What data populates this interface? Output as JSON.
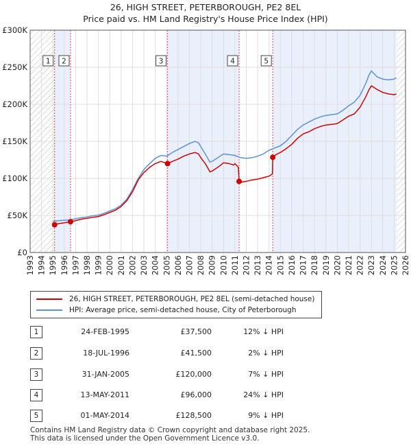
{
  "header": {
    "title": "26, HIGH STREET, PETERBOROUGH, PE2 8EL",
    "subtitle": "Price paid vs. HM Land Registry's House Price Index (HPI)"
  },
  "chart_data": {
    "type": "line",
    "title": "26, HIGH STREET, PETERBOROUGH, PE2 8EL",
    "subtitle": "Price paid vs. HM Land Registry's House Price Index (HPI)",
    "xlabel": "",
    "ylabel": "",
    "xlim": [
      1993,
      2026
    ],
    "ylim": [
      0,
      300000
    ],
    "x_ticks": [
      1993,
      1994,
      1995,
      1996,
      1997,
      1998,
      1999,
      2000,
      2001,
      2002,
      2003,
      2004,
      2005,
      2006,
      2007,
      2008,
      2009,
      2010,
      2011,
      2012,
      2013,
      2014,
      2015,
      2016,
      2017,
      2018,
      2019,
      2020,
      2021,
      2022,
      2023,
      2024,
      2025,
      2026
    ],
    "y_ticks": [
      0,
      50000,
      100000,
      150000,
      200000,
      250000,
      300000
    ],
    "y_tick_labels": [
      "£0",
      "£50K",
      "£100K",
      "£150K",
      "£200K",
      "£250K",
      "£300K"
    ],
    "grid": true,
    "hatched_ranges": [
      [
        1993,
        1995.15
      ],
      [
        2025.2,
        2026
      ]
    ],
    "sale_regions": [
      [
        1995.15,
        1996.55
      ],
      [
        2005.08,
        2011.37
      ],
      [
        2014.33,
        2025.2
      ]
    ],
    "series": [
      {
        "name": "26, HIGH STREET, PETERBOROUGH, PE2 8EL (semi-detached house)",
        "color": "#cc0000",
        "x": [
          1995.15,
          1995.5,
          1996.0,
          1996.55,
          1997.0,
          1997.5,
          1998.0,
          1998.5,
          1999.0,
          1999.5,
          2000.0,
          2000.5,
          2001.0,
          2001.5,
          2002.0,
          2002.5,
          2003.0,
          2003.5,
          2004.0,
          2004.5,
          2005.08,
          2005.5,
          2006.0,
          2006.5,
          2007.0,
          2007.5,
          2007.8,
          2008.0,
          2008.4,
          2008.8,
          2009.0,
          2009.5,
          2010.0,
          2010.5,
          2010.9,
          2011.0,
          2011.3,
          2011.37,
          2011.6,
          2012.0,
          2012.5,
          2013.0,
          2013.5,
          2014.0,
          2014.3,
          2014.33,
          2014.6,
          2015.0,
          2015.5,
          2016.0,
          2016.5,
          2017.0,
          2017.5,
          2018.0,
          2018.5,
          2019.0,
          2019.5,
          2020.0,
          2020.5,
          2021.0,
          2021.5,
          2022.0,
          2022.5,
          2022.8,
          2023.0,
          2023.5,
          2024.0,
          2024.5,
          2025.0,
          2025.2
        ],
        "y": [
          37500,
          39000,
          40000,
          41500,
          43000,
          45000,
          46000,
          47500,
          48500,
          51000,
          54000,
          57000,
          62000,
          70000,
          82000,
          98000,
          108000,
          115000,
          120000,
          123000,
          120000,
          123000,
          126000,
          130000,
          133000,
          135000,
          133000,
          128000,
          120000,
          109000,
          110000,
          115000,
          121000,
          120000,
          118000,
          120000,
          115000,
          96000,
          95000,
          96000,
          98000,
          99000,
          101000,
          103000,
          106000,
          128500,
          132000,
          135000,
          140000,
          146000,
          154000,
          160000,
          163000,
          167000,
          170000,
          172000,
          173000,
          174000,
          179000,
          184000,
          187000,
          196000,
          210000,
          220000,
          225000,
          220000,
          216000,
          214000,
          213000,
          214000
        ]
      },
      {
        "name": "HPI: Average price, semi-detached house, City of Peterborough",
        "color": "#5b8fd6",
        "x": [
          1995.0,
          1995.5,
          1996.0,
          1996.5,
          1997.0,
          1997.5,
          1998.0,
          1998.5,
          1999.0,
          1999.5,
          2000.0,
          2000.5,
          2001.0,
          2001.5,
          2002.0,
          2002.5,
          2003.0,
          2003.5,
          2004.0,
          2004.5,
          2005.0,
          2005.5,
          2006.0,
          2006.5,
          2007.0,
          2007.5,
          2007.8,
          2008.0,
          2008.4,
          2008.8,
          2009.0,
          2009.5,
          2010.0,
          2010.5,
          2011.0,
          2011.5,
          2012.0,
          2012.5,
          2013.0,
          2013.5,
          2014.0,
          2014.5,
          2015.0,
          2015.5,
          2016.0,
          2016.5,
          2017.0,
          2017.5,
          2018.0,
          2018.5,
          2019.0,
          2019.5,
          2020.0,
          2020.5,
          2021.0,
          2021.5,
          2022.0,
          2022.5,
          2022.8,
          2023.0,
          2023.5,
          2024.0,
          2024.5,
          2025.0,
          2025.2
        ],
        "y": [
          42000,
          43000,
          43500,
          44000,
          45500,
          47000,
          48000,
          49500,
          50500,
          53000,
          56000,
          59000,
          64000,
          72000,
          85000,
          100000,
          112000,
          120000,
          127000,
          131000,
          130000,
          135000,
          139000,
          143000,
          147000,
          150000,
          148000,
          143000,
          133000,
          122000,
          123000,
          128000,
          133000,
          132000,
          131000,
          128000,
          127000,
          128000,
          130000,
          133000,
          138000,
          141000,
          144000,
          150000,
          158000,
          166000,
          172000,
          176000,
          180000,
          183000,
          185000,
          186000,
          187000,
          192000,
          198000,
          203000,
          212000,
          228000,
          240000,
          245000,
          237000,
          234000,
          233000,
          234000,
          236000
        ]
      }
    ],
    "markers": [
      {
        "label": "1",
        "x": 1995.15,
        "y": 37500
      },
      {
        "label": "2",
        "x": 1996.55,
        "y": 41500
      },
      {
        "label": "3",
        "x": 2005.08,
        "y": 120000
      },
      {
        "label": "4",
        "x": 2011.37,
        "y": 96000
      },
      {
        "label": "5",
        "x": 2014.33,
        "y": 128500
      }
    ],
    "legend": "below-chart"
  },
  "legend": {
    "items": [
      {
        "label": "26, HIGH STREET, PETERBOROUGH, PE2 8EL (semi-detached house)",
        "color": "#cc0000"
      },
      {
        "label": "HPI: Average price, semi-detached house, City of Peterborough",
        "color": "#5b8fd6"
      }
    ]
  },
  "transactions": [
    {
      "num": "1",
      "date": "24-FEB-1995",
      "price": "£37,500",
      "hpi": "12% ↓ HPI"
    },
    {
      "num": "2",
      "date": "18-JUL-1996",
      "price": "£41,500",
      "hpi": "2% ↓ HPI"
    },
    {
      "num": "3",
      "date": "31-JAN-2005",
      "price": "£120,000",
      "hpi": "7% ↓ HPI"
    },
    {
      "num": "4",
      "date": "13-MAY-2011",
      "price": "£96,000",
      "hpi": "24% ↓ HPI"
    },
    {
      "num": "5",
      "date": "01-MAY-2014",
      "price": "£128,500",
      "hpi": "9% ↓ HPI"
    }
  ],
  "footer": {
    "line1": "Contains HM Land Registry data © Crown copyright and database right 2025.",
    "line2": "This data is licensed under the Open Government Licence v3.0."
  }
}
